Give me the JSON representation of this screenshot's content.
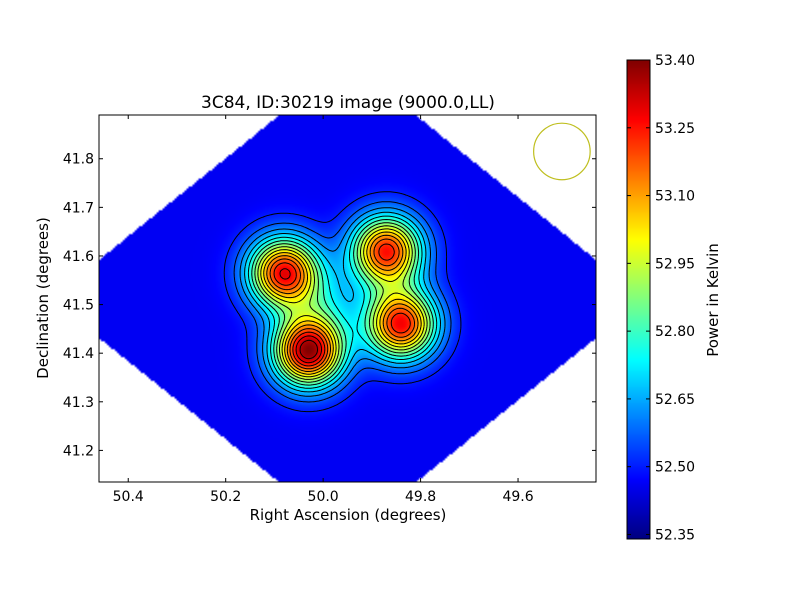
{
  "chart_data": {
    "type": "heatmap",
    "title": "3C84, ID:30219 image (9000.0,LL)",
    "xlabel": "Right Ascension (degrees)",
    "ylabel": "Declination (degrees)",
    "xlim": [
      50.46,
      49.44
    ],
    "ylim": [
      41.135,
      41.89
    ],
    "x_inverted": true,
    "x_ticks": [
      50.4,
      50.2,
      50.0,
      49.8,
      49.6
    ],
    "x_tick_labels": [
      "50.4",
      "50.2",
      "50.0",
      "49.8",
      "49.6"
    ],
    "y_ticks": [
      41.2,
      41.3,
      41.4,
      41.5,
      41.6,
      41.7,
      41.8
    ],
    "y_tick_labels": [
      "41.2",
      "41.3",
      "41.4",
      "41.5",
      "41.6",
      "41.7",
      "41.8"
    ],
    "colorbar": {
      "label": "Power in Kelvin",
      "vmin": 52.34,
      "vmax": 53.4,
      "ticks": [
        52.35,
        52.5,
        52.65,
        52.8,
        52.95,
        53.1,
        53.25,
        53.4
      ],
      "tick_labels": [
        "52.35",
        "52.50",
        "52.65",
        "52.80",
        "52.95",
        "53.10",
        "53.25",
        "53.40"
      ],
      "colormap": "jet"
    },
    "background_level": 52.46,
    "sources": [
      {
        "ra": 50.03,
        "dec": 41.405,
        "peak": 53.38
      },
      {
        "ra": 50.08,
        "dec": 41.565,
        "peak": 53.28
      },
      {
        "ra": 49.87,
        "dec": 41.61,
        "peak": 53.25
      },
      {
        "ra": 49.84,
        "dec": 41.46,
        "peak": 53.27
      },
      {
        "ra": 49.99,
        "dec": 41.505,
        "peak": 52.6
      }
    ],
    "beam": {
      "ra": 49.51,
      "dec": 41.815,
      "radius_deg": 0.058,
      "color": "#bfbf1f"
    },
    "contour_color": "#000000"
  }
}
